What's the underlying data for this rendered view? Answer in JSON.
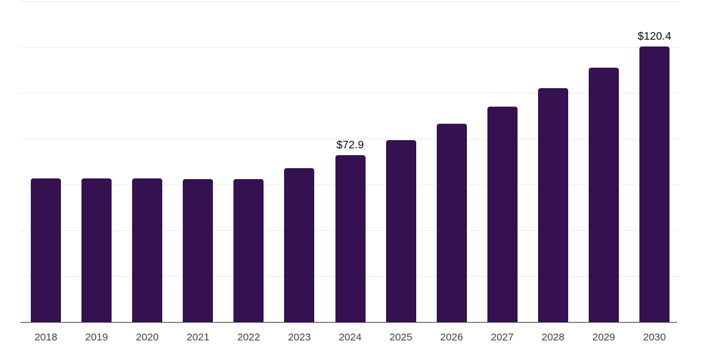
{
  "chart_data": {
    "type": "bar",
    "title": "",
    "xlabel": "",
    "ylabel": "",
    "categories": [
      "2018",
      "2019",
      "2020",
      "2021",
      "2022",
      "2023",
      "2024",
      "2025",
      "2026",
      "2027",
      "2028",
      "2029",
      "2030"
    ],
    "values": [
      62.8,
      62.8,
      62.7,
      62.4,
      62.5,
      67.4,
      72.9,
      79.4,
      86.6,
      94.0,
      102.2,
      111.1,
      120.4
    ],
    "data_labels": [
      {
        "category": "2024",
        "text": "$72.9"
      },
      {
        "category": "2030",
        "text": "$120.4"
      }
    ],
    "ylim": [
      0,
      140
    ],
    "gridline_interval": 20,
    "grid": "horizontal",
    "legend": "none",
    "y_axis_labels": "none",
    "colors": {
      "bar": "#341150",
      "axis_line": "#3a3a3a",
      "gridline": "#ededed",
      "data_label_text": "#0a0a0a",
      "tick_label_text": "#3f3f3f",
      "background": "#ffffff"
    }
  }
}
